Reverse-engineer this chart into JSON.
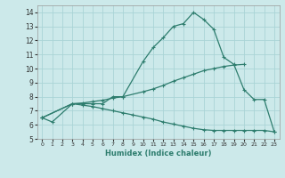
{
  "xlabel": "Humidex (Indice chaleur)",
  "background_color": "#cce9ea",
  "grid_color": "#aad4d6",
  "line_color": "#2e7d6e",
  "xlim": [
    -0.5,
    23.5
  ],
  "ylim": [
    5,
    14.5
  ],
  "yticks": [
    5,
    6,
    7,
    8,
    9,
    10,
    11,
    12,
    13,
    14
  ],
  "xticks": [
    0,
    1,
    2,
    3,
    4,
    5,
    6,
    7,
    8,
    9,
    10,
    11,
    12,
    13,
    14,
    15,
    16,
    17,
    18,
    19,
    20,
    21,
    22,
    23
  ],
  "curve1_x": [
    0,
    1,
    3,
    4,
    5,
    6,
    7,
    8,
    10,
    11,
    12,
    13,
    14,
    15,
    16,
    17,
    18,
    19,
    20,
    21,
    22,
    23
  ],
  "curve1_y": [
    6.5,
    6.2,
    7.5,
    7.5,
    7.5,
    7.5,
    8.0,
    8.0,
    10.5,
    11.5,
    12.2,
    13.0,
    13.2,
    14.0,
    13.5,
    12.8,
    10.8,
    10.3,
    8.5,
    7.8,
    7.8,
    5.5
  ],
  "curve2_x": [
    0,
    3,
    4,
    5,
    6,
    7,
    8,
    10,
    11,
    12,
    13,
    14,
    15,
    16,
    17,
    18,
    19,
    20
  ],
  "curve2_y": [
    6.5,
    7.5,
    7.55,
    7.65,
    7.75,
    7.9,
    8.0,
    8.35,
    8.55,
    8.8,
    9.1,
    9.35,
    9.6,
    9.85,
    10.0,
    10.15,
    10.25,
    10.3
  ],
  "curve3_x": [
    0,
    3,
    4,
    5,
    6,
    7,
    8,
    9,
    10,
    11,
    12,
    13,
    14,
    15,
    16,
    17,
    18,
    19,
    20,
    21,
    22,
    23
  ],
  "curve3_y": [
    6.5,
    7.5,
    7.4,
    7.3,
    7.15,
    7.0,
    6.85,
    6.7,
    6.55,
    6.4,
    6.2,
    6.05,
    5.9,
    5.75,
    5.65,
    5.6,
    5.6,
    5.6,
    5.6,
    5.6,
    5.6,
    5.5
  ]
}
